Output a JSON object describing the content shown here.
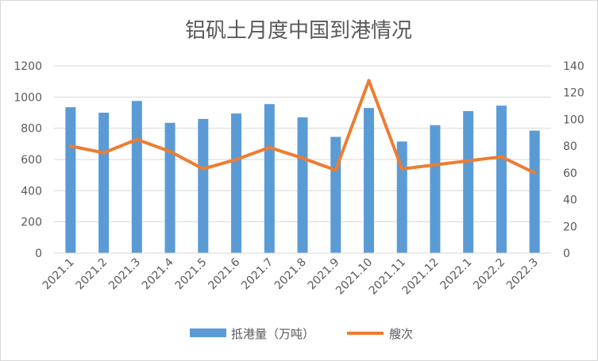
{
  "chart_data": {
    "type": "bar+line",
    "title": "铝矾土月度中国到港情况",
    "categories": [
      "2021.1",
      "2021.2",
      "2021.3",
      "2021.4",
      "2021.5",
      "2021.6",
      "2021.7",
      "2021.8",
      "2021.9",
      "2021.10",
      "2021.11",
      "2021.12",
      "2022.1",
      "2022.2",
      "2022.3"
    ],
    "series": [
      {
        "name": "抵港量（万吨）",
        "type": "bar",
        "axis": "left",
        "color": "#5b9bd5",
        "values": [
          935,
          900,
          975,
          835,
          860,
          895,
          955,
          870,
          745,
          930,
          715,
          820,
          910,
          945,
          785
        ]
      },
      {
        "name": "艘次",
        "type": "line",
        "axis": "right",
        "color": "#ed7d31",
        "values": [
          80,
          75,
          85,
          76,
          63,
          70,
          79,
          71,
          62,
          129,
          63,
          66,
          69,
          72,
          60
        ]
      }
    ],
    "y_left": {
      "min": 0,
      "max": 1200,
      "ticks": [
        "0",
        "200",
        "400",
        "600",
        "800",
        "1000",
        "1200"
      ]
    },
    "y_right": {
      "min": 0,
      "max": 140,
      "ticks": [
        "0",
        "20",
        "40",
        "60",
        "80",
        "100",
        "120",
        "140"
      ]
    },
    "grid": true,
    "legend_position": "bottom"
  }
}
